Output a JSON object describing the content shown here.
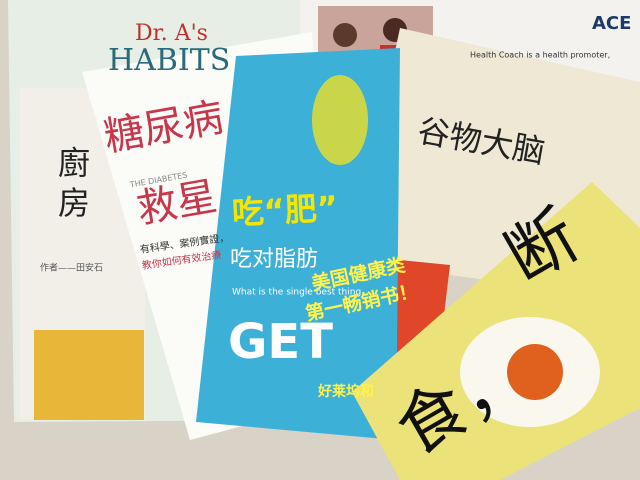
{
  "books": [
    {
      "lines": [
        "Dr. A's",
        "HABITS"
      ]
    },
    {
      "logo": "ACE",
      "text": "Health Coach is a health promoter,"
    },
    {
      "lines": [
        "廚",
        "房"
      ],
      "author": "作者——田安石"
    },
    {
      "lines": [
        "糖尿病",
        "救星"
      ],
      "subtitle": "THE DIABETES",
      "blurb": [
        "有科學、案例實證，",
        "教你如何有效治療"
      ]
    },
    {
      "lines": [
        "吃“肥”",
        "吃对脂肪"
      ],
      "blurb": "What is the single best thing",
      "big": "GET"
    },
    {
      "title": "谷物大脑",
      "banner": [
        "美国健康类",
        "第一畅销书！"
      ],
      "note": "好莱坞和"
    },
    {
      "lines": [
        "断",
        "食，"
      ]
    }
  ]
}
